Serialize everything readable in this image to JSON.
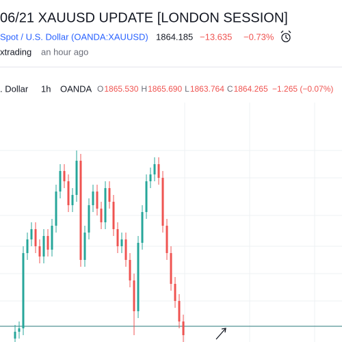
{
  "header": {
    "title": "06/21 XAUUSD UPDATE [LONDON SESSION]",
    "symbol": "Spot / U.S. Dollar (OANDA:XAUUSD)",
    "price": "1864.185",
    "change": "−13.635",
    "change_pct": "−0.73%",
    "author": "xtrading",
    "time": "an hour ago"
  },
  "legend": {
    "name": ". Dollar",
    "interval": "1h",
    "exchange": "OANDA",
    "fields": [
      {
        "key": "O",
        "value": "1865.530"
      },
      {
        "key": "H",
        "value": "1865.690"
      },
      {
        "key": "L",
        "value": "1863.764"
      },
      {
        "key": "C",
        "value": "1864.265"
      }
    ],
    "change": "−1.265 (−0.07%)"
  },
  "chart_data": {
    "type": "candlestick",
    "ylim": [
      1863.6,
      1871.2
    ],
    "up_color": "#26a69a",
    "down_color": "#ef5350",
    "horizontal_line": 1864.06,
    "candles": [
      {
        "o": 1863.7,
        "h": 1864.1,
        "l": 1863.5,
        "c": 1863.9
      },
      {
        "o": 1863.9,
        "h": 1864.2,
        "l": 1863.7,
        "c": 1864.0
      },
      {
        "o": 1864.0,
        "h": 1866.4,
        "l": 1863.8,
        "c": 1866.2
      },
      {
        "o": 1866.2,
        "h": 1866.8,
        "l": 1866.0,
        "c": 1866.6
      },
      {
        "o": 1866.6,
        "h": 1867.1,
        "l": 1866.4,
        "c": 1866.9
      },
      {
        "o": 1866.9,
        "h": 1867.1,
        "l": 1866.2,
        "c": 1866.4
      },
      {
        "o": 1866.4,
        "h": 1866.6,
        "l": 1865.9,
        "c": 1866.1
      },
      {
        "o": 1866.1,
        "h": 1866.9,
        "l": 1865.9,
        "c": 1866.7
      },
      {
        "o": 1866.7,
        "h": 1866.9,
        "l": 1866.1,
        "c": 1866.3
      },
      {
        "o": 1866.3,
        "h": 1867.2,
        "l": 1866.1,
        "c": 1867.0
      },
      {
        "o": 1867.0,
        "h": 1868.2,
        "l": 1866.8,
        "c": 1868.0
      },
      {
        "o": 1868.0,
        "h": 1868.8,
        "l": 1867.8,
        "c": 1868.6
      },
      {
        "o": 1868.6,
        "h": 1868.8,
        "l": 1868.1,
        "c": 1868.3
      },
      {
        "o": 1868.3,
        "h": 1868.5,
        "l": 1867.4,
        "c": 1867.6
      },
      {
        "o": 1867.6,
        "h": 1868.1,
        "l": 1867.4,
        "c": 1867.9
      },
      {
        "o": 1867.9,
        "h": 1869.2,
        "l": 1867.7,
        "c": 1868.9
      },
      {
        "o": 1868.9,
        "h": 1869.1,
        "l": 1865.8,
        "c": 1866.0
      },
      {
        "o": 1866.0,
        "h": 1867.0,
        "l": 1865.8,
        "c": 1866.8
      },
      {
        "o": 1866.8,
        "h": 1867.8,
        "l": 1866.6,
        "c": 1867.6
      },
      {
        "o": 1867.6,
        "h": 1868.2,
        "l": 1867.4,
        "c": 1868.0
      },
      {
        "o": 1868.0,
        "h": 1868.2,
        "l": 1867.3,
        "c": 1867.5
      },
      {
        "o": 1867.5,
        "h": 1867.7,
        "l": 1866.9,
        "c": 1867.1
      },
      {
        "o": 1867.1,
        "h": 1868.3,
        "l": 1866.9,
        "c": 1868.1
      },
      {
        "o": 1868.1,
        "h": 1868.3,
        "l": 1867.5,
        "c": 1867.7
      },
      {
        "o": 1867.7,
        "h": 1867.9,
        "l": 1866.7,
        "c": 1866.9
      },
      {
        "o": 1866.9,
        "h": 1867.1,
        "l": 1866.2,
        "c": 1866.4
      },
      {
        "o": 1866.4,
        "h": 1866.8,
        "l": 1866.2,
        "c": 1866.6
      },
      {
        "o": 1866.6,
        "h": 1866.8,
        "l": 1865.8,
        "c": 1866.0
      },
      {
        "o": 1866.0,
        "h": 1866.2,
        "l": 1865.2,
        "c": 1865.4
      },
      {
        "o": 1865.4,
        "h": 1865.6,
        "l": 1863.8,
        "c": 1864.5
      },
      {
        "o": 1864.5,
        "h": 1866.7,
        "l": 1864.3,
        "c": 1866.5
      },
      {
        "o": 1866.5,
        "h": 1867.6,
        "l": 1866.3,
        "c": 1867.4
      },
      {
        "o": 1867.4,
        "h": 1868.5,
        "l": 1867.2,
        "c": 1868.3
      },
      {
        "o": 1868.3,
        "h": 1868.7,
        "l": 1868.1,
        "c": 1868.5
      },
      {
        "o": 1868.5,
        "h": 1869.0,
        "l": 1868.3,
        "c": 1868.8
      },
      {
        "o": 1868.8,
        "h": 1869.0,
        "l": 1868.2,
        "c": 1868.4
      },
      {
        "o": 1868.4,
        "h": 1868.6,
        "l": 1866.8,
        "c": 1867.0
      },
      {
        "o": 1867.0,
        "h": 1867.2,
        "l": 1866.0,
        "c": 1866.2
      },
      {
        "o": 1866.2,
        "h": 1866.4,
        "l": 1865.1,
        "c": 1865.3
      },
      {
        "o": 1865.3,
        "h": 1865.5,
        "l": 1864.6,
        "c": 1864.8
      },
      {
        "o": 1864.8,
        "h": 1865.0,
        "l": 1864.0,
        "c": 1864.2
      },
      {
        "o": 1864.2,
        "h": 1864.4,
        "l": 1863.6,
        "c": 1863.8
      }
    ]
  }
}
